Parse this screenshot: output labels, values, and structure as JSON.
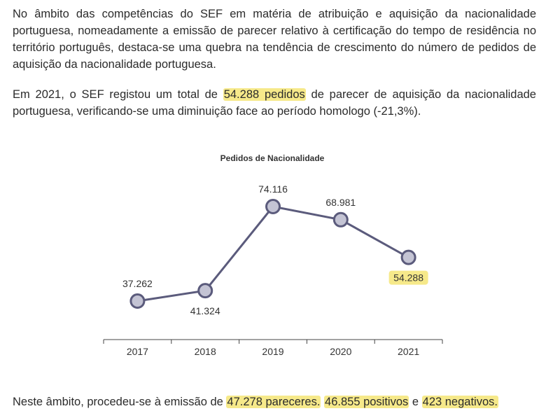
{
  "text": {
    "p1": "No âmbito das competências do SEF em matéria de atribuição e aquisição da nacionalidade portuguesa, nomeadamente a emissão de parecer relativo à certificação do tempo de residência no território português, destaca-se uma quebra na tendência de crescimento do número de pedidos de aquisição da nacionalidade portuguesa.",
    "p2_before": "Em 2021, o SEF registou um total de ",
    "p2_highlight": "54.288 pedidos",
    "p2_after": " de parecer de aquisição da nacionalidade portuguesa, verificando-se uma diminuição face ao período homologo (-21,3%).",
    "p3_before": "Neste âmbito, procedeu-se à emissão de ",
    "p3_h1": "47.278 pareceres.",
    "p3_sep1": " ",
    "p3_h2": "46.855 positivos",
    "p3_sep2": " e ",
    "p3_h3": "423 negativos."
  },
  "chart_data": {
    "type": "line",
    "title": "Pedidos de Nacionalidade",
    "categories": [
      "2017",
      "2018",
      "2019",
      "2020",
      "2021"
    ],
    "values": [
      37262,
      41324,
      74116,
      68981,
      54288
    ],
    "value_labels": [
      "37.262",
      "41.324",
      "74.116",
      "68.981",
      "54.288"
    ],
    "label_positions": [
      "above",
      "below",
      "above",
      "above",
      "below"
    ],
    "highlighted_index": 4,
    "xlabel": "",
    "ylabel": "",
    "grid": false,
    "legend": "none"
  },
  "colors": {
    "line": "#5b5b7c",
    "marker_fill": "#c4c4d4",
    "marker_stroke": "#5b5b7c",
    "highlight": "#f6e98a",
    "axis": "#444444"
  }
}
